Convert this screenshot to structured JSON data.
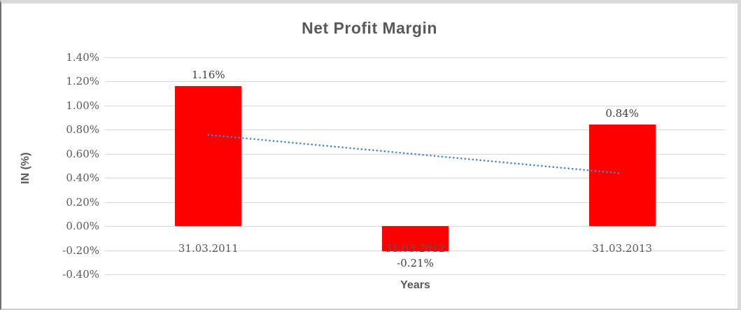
{
  "chart_data": {
    "type": "bar",
    "title": "Net Profit Margin",
    "xlabel": "Years",
    "ylabel": "IN (%)",
    "categories": [
      "31.03.2011",
      "31.03.2012",
      "31.03.2013"
    ],
    "values": [
      1.16,
      -0.21,
      0.84
    ],
    "value_labels": [
      "1.16%",
      "-0.21%",
      "0.84%"
    ],
    "unit": "percent",
    "ylim": [
      -0.4,
      1.4
    ],
    "ytick_step": 0.2,
    "yticks": [
      {
        "label": "1.40%",
        "value": 1.4
      },
      {
        "label": "1.20%",
        "value": 1.2
      },
      {
        "label": "1.00%",
        "value": 1.0
      },
      {
        "label": "0.80%",
        "value": 0.8
      },
      {
        "label": "0.60%",
        "value": 0.6
      },
      {
        "label": "0.40%",
        "value": 0.4
      },
      {
        "label": "0.20%",
        "value": 0.2
      },
      {
        "label": "0.00%",
        "value": 0.0
      },
      {
        "label": "-0.20%",
        "value": -0.2
      },
      {
        "label": "-0.40%",
        "value": -0.4
      }
    ],
    "grid": true,
    "legend": "none",
    "bar_color": "#ff0000",
    "trendline": {
      "type": "linear",
      "style": "dotted",
      "color": "#4a86c8",
      "start_value": 0.757,
      "end_value": 0.437
    },
    "colors": {
      "title": "#595959",
      "tick_labels": "#595959",
      "data_labels": "#3f3f3f",
      "gridline": "#d9d9d9",
      "background": "#ffffff"
    }
  }
}
